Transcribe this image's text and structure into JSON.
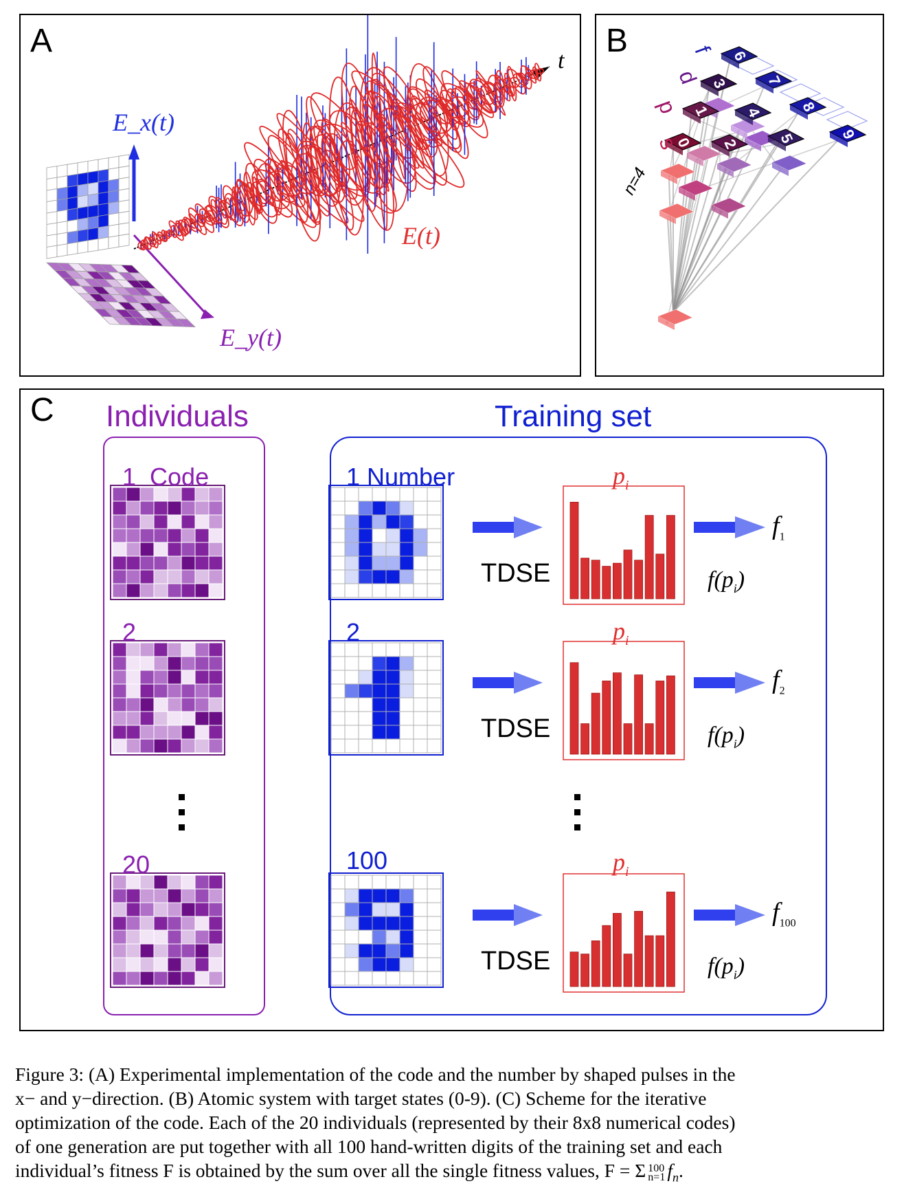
{
  "panels": {
    "a": {
      "letter": "A",
      "ex_label": "E_x(t)",
      "ey_label": "E_y(t)",
      "e_label": "E(t)",
      "t_label": "t"
    },
    "b": {
      "letter": "B",
      "states": [
        "0",
        "1",
        "2",
        "3",
        "4",
        "5",
        "6",
        "7",
        "8",
        "9"
      ],
      "shell_s": "s",
      "shell_p": "p",
      "shell_d": "d",
      "shell_f": "f",
      "n_label": "n=4"
    },
    "c": {
      "letter": "C",
      "individuals_title": "Individuals",
      "training_title": "Training set",
      "individual_labels": [
        "1  Code",
        "2",
        "20"
      ],
      "number_labels": [
        "1 Number",
        "2",
        "100"
      ],
      "tdse_label": "TDSE",
      "p_label": "p",
      "p_sub": "i",
      "fp_label": "f(p",
      "f_subs": [
        "1",
        "2",
        "100"
      ]
    }
  },
  "caption": {
    "lines": [
      "Figure 3:  (A) Experimental implementation of the code and the number by shaped pulses in the",
      "x− and y−direction.  (B) Atomic system with target states (0-9).  (C) Scheme for the iterative",
      "optimization of the code.  Each of the 20 individuals (represented by their 8x8 numerical codes)",
      "of one generation are put together with all 100 hand-written digits of the training set and each",
      "individual’s fitness F is obtained by the sum over all the single fitness values, F = Σ",
      "n=1",
      "100",
      "f",
      "n",
      "."
    ]
  },
  "colors": {
    "purple": "#8a1fb0",
    "blue": "#1020d0",
    "red": "#e03030",
    "dark_purple": "#6a0f7a"
  }
}
